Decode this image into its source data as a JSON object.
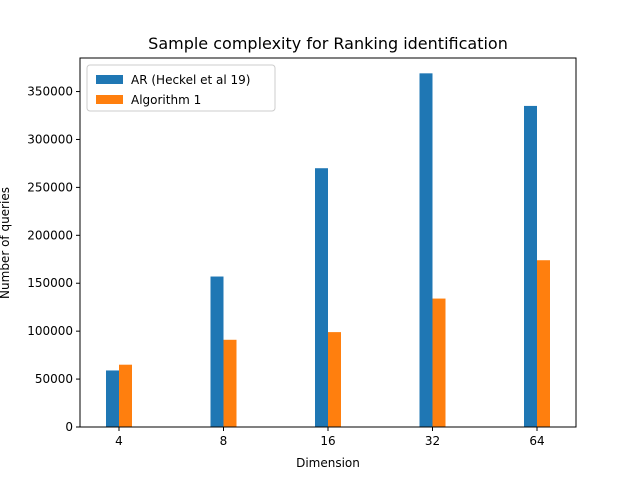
{
  "chart_data": {
    "type": "bar",
    "title": "Sample complexity for Ranking identification",
    "xlabel": "Dimension",
    "ylabel": "Number of queries",
    "categories": [
      "4",
      "8",
      "16",
      "32",
      "64"
    ],
    "series": [
      {
        "name": "AR (Heckel et al 19)",
        "color": "#1f77b4",
        "values": [
          59000,
          157000,
          270000,
          369000,
          335000
        ]
      },
      {
        "name": "Algorithm 1",
        "color": "#ff7f0e",
        "values": [
          65000,
          91000,
          99000,
          134000,
          174000
        ]
      }
    ],
    "ylim": [
      0,
      385000
    ],
    "yticks": [
      0,
      50000,
      100000,
      150000,
      200000,
      250000,
      300000,
      350000
    ],
    "grid": false,
    "legend_position": "top-left"
  }
}
